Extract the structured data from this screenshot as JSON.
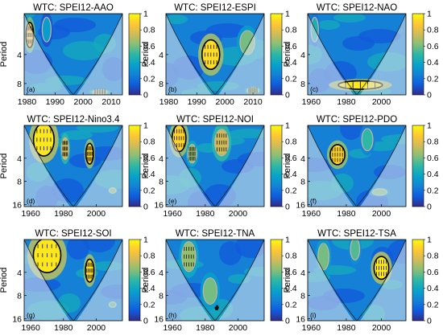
{
  "figure": {
    "colormap": [
      "#352a87",
      "#0f5cdd",
      "#1481d6",
      "#06a4ca",
      "#2eb7a4",
      "#87bf77",
      "#d1bb59",
      "#fec832",
      "#f9fb0e"
    ],
    "cone_color": "#dfe6ee",
    "contour_color": "#000000",
    "insignificant_color": "#c8b4a8"
  },
  "chart_data": [
    {
      "type": "heatmap",
      "id": "a",
      "title": "WTC: SPEI12-AAO",
      "panel_label": "(a)",
      "xlabel": "",
      "ylabel": "Period",
      "xlim": [
        1979,
        2014
      ],
      "x_ticks": [
        1980,
        1990,
        2000,
        2010
      ],
      "y_ticks": [
        4,
        8
      ],
      "y_tick_labels": [
        "4",
        "8"
      ],
      "ylim": [
        1.5,
        10.5
      ],
      "colorbar": {
        "range": [
          0,
          1
        ],
        "ticks": [
          0,
          0.2,
          0.4,
          0.6,
          0.8,
          1
        ],
        "tick_labels": [
          "0",
          "0.2",
          "0.4",
          "0.6",
          "0.8",
          "1"
        ]
      },
      "grid": false,
      "coherence_regions": [
        {
          "x": 1981,
          "period": 2.5,
          "rx": 1.3,
          "ry": 0.7,
          "coherence": 0.85,
          "significant": true
        },
        {
          "x": 1987,
          "period": 2.2,
          "rx": 1.5,
          "ry": 0.6,
          "coherence": 0.35,
          "significant": false
        },
        {
          "x": 2006,
          "period": 9.8,
          "rx": 2.5,
          "ry": 0.5,
          "coherence": 0.7,
          "significant": false
        }
      ]
    },
    {
      "type": "heatmap",
      "id": "b",
      "title": "WTC: SPEI12-ESPI",
      "panel_label": "(b)",
      "xlabel": "",
      "ylabel": "Period",
      "xlim": [
        1979,
        2014
      ],
      "x_ticks": [
        1980,
        1990,
        2000,
        2010
      ],
      "y_ticks": [
        4,
        8
      ],
      "y_tick_labels": [
        "4",
        "8"
      ],
      "ylim": [
        1.5,
        10.5
      ],
      "colorbar": {
        "range": [
          0,
          1
        ],
        "ticks": [
          0,
          0.2,
          0.4,
          0.6,
          0.8,
          1
        ],
        "tick_labels": [
          "0",
          "0.2",
          "0.4",
          "0.6",
          "0.8",
          "1"
        ]
      },
      "grid": false,
      "coherence_regions": [
        {
          "x": 1995,
          "period": 4.0,
          "rx": 3.0,
          "ry": 1.3,
          "coherence": 0.92,
          "significant": true
        },
        {
          "x": 2008,
          "period": 3.0,
          "rx": 2.5,
          "ry": 0.8,
          "coherence": 0.6,
          "significant": false
        },
        {
          "x": 2010,
          "period": 9.5,
          "rx": 2.0,
          "ry": 0.7,
          "coherence": 0.65,
          "significant": false
        }
      ]
    },
    {
      "type": "heatmap",
      "id": "c",
      "title": "WTC: SPEI12-NAO",
      "panel_label": "(c)",
      "xlabel": "",
      "ylabel": "Period",
      "xlim": [
        1958,
        2014
      ],
      "x_ticks": [
        1960,
        1980,
        2000
      ],
      "y_ticks": [
        4,
        8
      ],
      "y_tick_labels": [
        "4",
        "8"
      ],
      "ylim": [
        1.5,
        10.5
      ],
      "colorbar": {
        "range": [
          0,
          1
        ],
        "ticks": [
          0,
          0.2,
          0.4,
          0.6,
          0.8,
          1
        ],
        "tick_labels": [
          "0",
          "0.2",
          "0.4",
          "0.6",
          "0.8",
          "1"
        ]
      },
      "grid": false,
      "coherence_regions": [
        {
          "x": 1988,
          "period": 8.3,
          "rx": 12,
          "ry": 0.8,
          "coherence": 0.95,
          "significant": true
        },
        {
          "x": 1962,
          "period": 2.2,
          "rx": 2.0,
          "ry": 0.6,
          "coherence": 0.45,
          "significant": false
        }
      ]
    },
    {
      "type": "heatmap",
      "id": "d",
      "title": "WTC: SPEI12-Nino3.4",
      "panel_label": "(d)",
      "xlabel": "",
      "ylabel": "Period",
      "xlim": [
        1956,
        2016
      ],
      "x_ticks": [
        1960,
        1980,
        2000
      ],
      "y_ticks": [
        4,
        8,
        16
      ],
      "y_tick_labels": [
        "4",
        "8",
        "16"
      ],
      "ylim": [
        1.5,
        17
      ],
      "colorbar": {
        "range": [
          0,
          1
        ],
        "ticks": [
          0,
          0.2,
          0.4,
          0.6,
          0.8,
          1
        ],
        "tick_labels": [
          "0",
          "0.2",
          "0.4",
          "0.6",
          "0.8",
          "1"
        ]
      },
      "grid": false,
      "coherence_regions": [
        {
          "x": 1968,
          "period": 2.3,
          "rx": 6.0,
          "ry": 1.0,
          "coherence": 0.95,
          "significant": true
        },
        {
          "x": 1996,
          "period": 3.5,
          "rx": 2.2,
          "ry": 1.0,
          "coherence": 0.9,
          "significant": true
        },
        {
          "x": 1981,
          "period": 3.0,
          "rx": 2.0,
          "ry": 0.9,
          "coherence": 0.75,
          "significant": false
        },
        {
          "x": 2010,
          "period": 10.5,
          "rx": 2.0,
          "ry": 0.8,
          "coherence": 0.6,
          "significant": false
        }
      ]
    },
    {
      "type": "heatmap",
      "id": "e",
      "title": "WTC: SPEI12-NOI",
      "panel_label": "(e)",
      "xlabel": "",
      "ylabel": "Period",
      "xlim": [
        1956,
        2016
      ],
      "x_ticks": [
        1960,
        1980,
        2000
      ],
      "y_ticks": [
        4,
        8,
        16
      ],
      "y_tick_labels": [
        "4",
        "8",
        "16"
      ],
      "ylim": [
        1.5,
        17
      ],
      "colorbar": {
        "range": [
          0,
          1
        ],
        "ticks": [
          0,
          0.2,
          0.4,
          0.6,
          0.8,
          1
        ],
        "tick_labels": [
          "0",
          "0.2",
          "0.4",
          "0.6",
          "0.8",
          "1"
        ]
      },
      "grid": false,
      "coherence_regions": [
        {
          "x": 1964,
          "period": 2.2,
          "rx": 4.0,
          "ry": 0.8,
          "coherence": 0.9,
          "significant": true
        },
        {
          "x": 1990,
          "period": 2.5,
          "rx": 4.0,
          "ry": 0.9,
          "coherence": 0.75,
          "significant": false
        },
        {
          "x": 1972,
          "period": 3.5,
          "rx": 2.5,
          "ry": 0.9,
          "coherence": 0.65,
          "significant": false
        }
      ]
    },
    {
      "type": "heatmap",
      "id": "f",
      "title": "WTC: SPEI12-PDO",
      "panel_label": "(f)",
      "xlabel": "",
      "ylabel": "Period",
      "xlim": [
        1958,
        2014
      ],
      "x_ticks": [
        1960,
        1980,
        2000
      ],
      "y_ticks": [
        4,
        8,
        16
      ],
      "y_tick_labels": [
        "4",
        "8",
        "16"
      ],
      "ylim": [
        1.5,
        17
      ],
      "colorbar": {
        "range": [
          0,
          1
        ],
        "ticks": [
          0,
          0.2,
          0.4,
          0.6,
          0.8,
          1
        ],
        "tick_labels": [
          "0",
          "0.2",
          "0.4",
          "0.6",
          "0.8",
          "1"
        ]
      },
      "grid": false,
      "coherence_regions": [
        {
          "x": 1975,
          "period": 3.6,
          "rx": 4.0,
          "ry": 1.0,
          "coherence": 0.9,
          "significant": true
        },
        {
          "x": 1999,
          "period": 11.0,
          "rx": 4.0,
          "ry": 1.0,
          "coherence": 0.6,
          "significant": false
        },
        {
          "x": 1992,
          "period": 2.3,
          "rx": 3.0,
          "ry": 0.7,
          "coherence": 0.5,
          "significant": false
        }
      ]
    },
    {
      "type": "heatmap",
      "id": "g",
      "title": "WTC: SPEI12-SOI",
      "panel_label": "(g)",
      "xlabel": "",
      "ylabel": "Period",
      "xlim": [
        1956,
        2016
      ],
      "x_ticks": [
        1960,
        1980,
        2000
      ],
      "y_ticks": [
        4,
        8,
        16
      ],
      "y_tick_labels": [
        "4",
        "8",
        "16"
      ],
      "ylim": [
        1.5,
        17
      ],
      "colorbar": {
        "range": [
          0,
          1
        ],
        "ticks": [
          0,
          0.2,
          0.4,
          0.6,
          0.8,
          1
        ],
        "tick_labels": [
          "0",
          "0.2",
          "0.4",
          "0.6",
          "0.8",
          "1"
        ]
      },
      "grid": false,
      "coherence_regions": [
        {
          "x": 1970,
          "period": 2.4,
          "rx": 8.0,
          "ry": 1.1,
          "coherence": 0.95,
          "significant": true
        },
        {
          "x": 1996,
          "period": 3.8,
          "rx": 2.5,
          "ry": 1.2,
          "coherence": 0.92,
          "significant": true
        },
        {
          "x": 2010,
          "period": 10.5,
          "rx": 2.0,
          "ry": 0.8,
          "coherence": 0.55,
          "significant": false
        }
      ]
    },
    {
      "type": "heatmap",
      "id": "h",
      "title": "WTC: SPEI12-TNA",
      "panel_label": "(h)",
      "xlabel": "",
      "ylabel": "Period",
      "xlim": [
        1956,
        2016
      ],
      "x_ticks": [
        1960,
        1980,
        2000
      ],
      "y_ticks": [
        4,
        8,
        16
      ],
      "y_tick_labels": [
        "4",
        "8",
        "16"
      ],
      "ylim": [
        1.5,
        17
      ],
      "colorbar": {
        "range": [
          0,
          1
        ],
        "ticks": [
          0,
          0.2,
          0.4,
          0.6,
          0.8,
          1
        ],
        "tick_labels": [
          "0",
          "0.2",
          "0.4",
          "0.6",
          "0.8",
          "1"
        ]
      },
      "grid": false,
      "coherence_regions": [
        {
          "x": 1987,
          "period": 11.5,
          "rx": 0.9,
          "ry": 0.35,
          "coherence": 0.95,
          "significant": true
        },
        {
          "x": 1970,
          "period": 2.5,
          "rx": 4.0,
          "ry": 1.0,
          "coherence": 0.65,
          "significant": false
        },
        {
          "x": 1983,
          "period": 7.0,
          "rx": 4.0,
          "ry": 2.5,
          "coherence": 0.6,
          "significant": false
        }
      ]
    },
    {
      "type": "heatmap",
      "id": "i",
      "title": "WTC: SPEI12-TSA",
      "panel_label": "(i)",
      "xlabel": "",
      "ylabel": "Period",
      "xlim": [
        1958,
        2014
      ],
      "x_ticks": [
        1960,
        1980,
        2000
      ],
      "y_ticks": [
        4,
        8,
        16
      ],
      "y_tick_labels": [
        "4",
        "8",
        "16"
      ],
      "ylim": [
        1.5,
        17
      ],
      "colorbar": {
        "range": [
          0,
          1
        ],
        "ticks": [
          0,
          0.2,
          0.4,
          0.6,
          0.8,
          1
        ],
        "tick_labels": [
          "0",
          "0.2",
          "0.4",
          "0.6",
          "0.8",
          "1"
        ]
      },
      "grid": false,
      "coherence_regions": [
        {
          "x": 2000,
          "period": 3.5,
          "rx": 4.0,
          "ry": 1.1,
          "coherence": 0.95,
          "significant": true
        },
        {
          "x": 1967,
          "period": 2.5,
          "rx": 3.0,
          "ry": 0.9,
          "coherence": 0.6,
          "significant": false
        },
        {
          "x": 1985,
          "period": 2.0,
          "rx": 2.5,
          "ry": 0.6,
          "coherence": 0.55,
          "significant": false
        }
      ]
    }
  ]
}
